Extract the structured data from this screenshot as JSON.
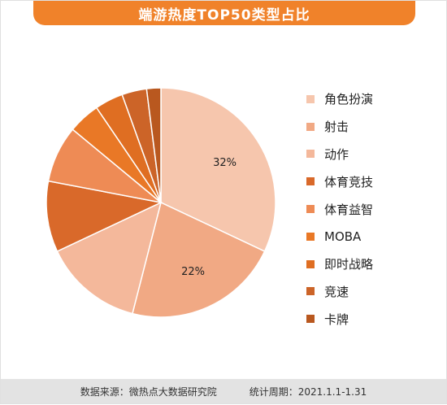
{
  "title": "端游热度TOP50类型占比",
  "footer": {
    "source": "数据来源：微热点大数据研究院",
    "period": "统计周期：2021.1.1-1.31"
  },
  "chart_data": {
    "type": "pie",
    "title": "端游热度TOP50类型占比",
    "legend_position": "right",
    "slices": [
      {
        "name": "角色扮演",
        "value": 32,
        "color": "#f6c6ad",
        "label": "32%"
      },
      {
        "name": "射击",
        "value": 22,
        "color": "#f1a984",
        "label": "22%"
      },
      {
        "name": "动作",
        "value": 14,
        "color": "#f4b89b",
        "label": ""
      },
      {
        "name": "体育竞技",
        "value": 10,
        "color": "#d9692a",
        "label": ""
      },
      {
        "name": "体育益智",
        "value": 8,
        "color": "#ee8b55",
        "label": ""
      },
      {
        "name": "MOBA",
        "value": 4.5,
        "color": "#e97826",
        "label": ""
      },
      {
        "name": "即时战略",
        "value": 4,
        "color": "#df6e22",
        "label": ""
      },
      {
        "name": "竞速",
        "value": 3.5,
        "color": "#cc6428",
        "label": ""
      },
      {
        "name": "卡牌",
        "value": 2,
        "color": "#b9581f",
        "label": ""
      }
    ]
  }
}
